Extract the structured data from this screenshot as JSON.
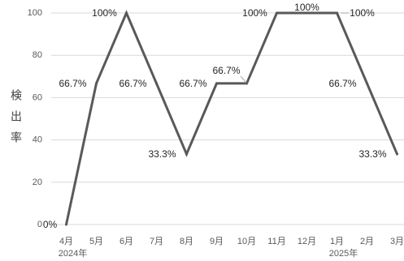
{
  "chart_data": {
    "type": "line",
    "title": "",
    "xlabel": "",
    "ylabel": "検出率",
    "categories": [
      "4月",
      "5月",
      "6月",
      "7月",
      "8月",
      "9月",
      "10月",
      "11月",
      "12月",
      "1月",
      "2月",
      "3月"
    ],
    "category_groups": [
      {
        "start": "4月",
        "label": "2024年"
      },
      {
        "start": "1月",
        "label": "2025年"
      }
    ],
    "series": [
      {
        "values": [
          0,
          66.7,
          100,
          66.7,
          33.3,
          66.7,
          66.7,
          100,
          100,
          100,
          66.7,
          33.3
        ],
        "data_labels": [
          "0%",
          "66.7%",
          "100%",
          "66.7%",
          "33.3%",
          "66.7%",
          "66.7%",
          "100%",
          "100%",
          "100%",
          "66.7%",
          "33.3%"
        ]
      }
    ],
    "ylim": [
      0,
      100
    ],
    "yticks": [
      0,
      20,
      40,
      60,
      80,
      100
    ],
    "grid": true,
    "legend": "none",
    "colors": {
      "line": "#595959",
      "gridline": "#d9d9d9",
      "tick_text": "#595959",
      "label_text": "#262626",
      "leader": "#a6a6a6"
    }
  }
}
